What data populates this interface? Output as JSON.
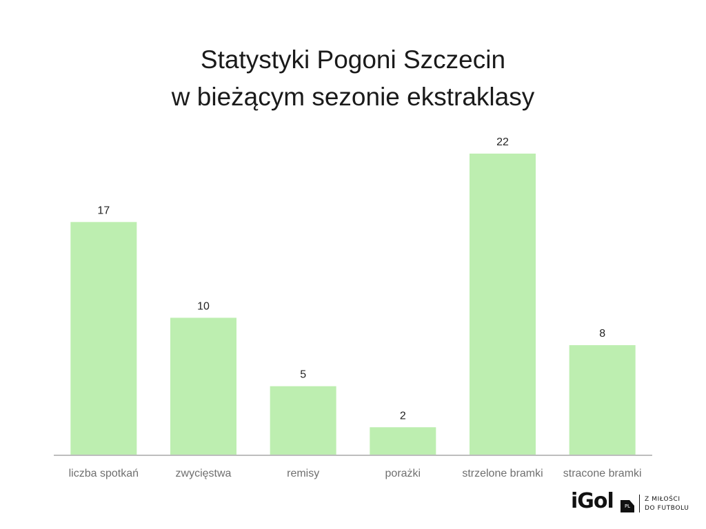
{
  "chart_data": {
    "type": "bar",
    "title_lines": [
      "Statystyki Pogoni Szczecin",
      "w bieżącym sezonie ekstraklasy"
    ],
    "categories": [
      "liczba spotkań",
      "zwycięstwa",
      "remisy",
      "porażki",
      "strzelone bramki",
      "stracone bramki"
    ],
    "values": [
      17,
      10,
      5,
      2,
      22,
      8
    ],
    "value_labels": [
      "17",
      "10",
      "5",
      "2",
      "22",
      "8"
    ],
    "xlabel": "",
    "ylabel": "",
    "ylim": [
      0,
      22
    ],
    "grid": false,
    "legend": "none",
    "bar_color": "#bdeeb0",
    "axis_color": "#bdbdbd"
  },
  "logo": {
    "name": "iGol",
    "badge": "PL",
    "tagline_lines": [
      "Z MIŁOŚCI",
      "DO FUTBOLU"
    ]
  }
}
